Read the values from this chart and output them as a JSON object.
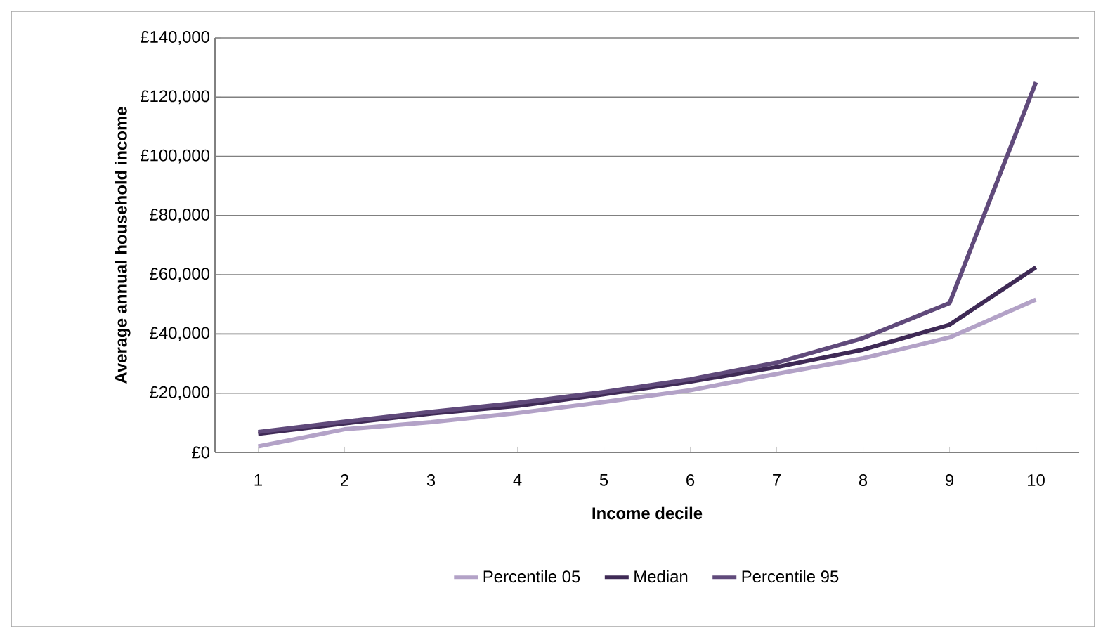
{
  "chart_data": {
    "type": "line",
    "xlabel": "Income decile",
    "ylabel": "Average annual household income",
    "categories": [
      "1",
      "2",
      "3",
      "4",
      "5",
      "6",
      "7",
      "8",
      "9",
      "10"
    ],
    "series": [
      {
        "name": "Percentile 05",
        "color": "#b3a2c7",
        "values": [
          2000,
          7800,
          10200,
          13300,
          17000,
          21000,
          26500,
          31800,
          38800,
          51600
        ]
      },
      {
        "name": "Median",
        "color": "#3f2a56",
        "values": [
          6300,
          9800,
          13100,
          15700,
          19600,
          23900,
          28800,
          34700,
          43100,
          62500
        ]
      },
      {
        "name": "Percentile 95",
        "color": "#604a7b",
        "values": [
          6900,
          10400,
          13700,
          16700,
          20400,
          24700,
          30300,
          38600,
          50400,
          125000
        ]
      }
    ],
    "ylim": [
      0,
      140000
    ],
    "yticks": [
      {
        "value": 0,
        "label": "£0"
      },
      {
        "value": 20000,
        "label": "£20,000"
      },
      {
        "value": 40000,
        "label": "£40,000"
      },
      {
        "value": 60000,
        "label": "£60,000"
      },
      {
        "value": 80000,
        "label": "£80,000"
      },
      {
        "value": 100000,
        "label": "£100,000"
      },
      {
        "value": 120000,
        "label": "£120,000"
      },
      {
        "value": 140000,
        "label": "£140,000"
      }
    ],
    "grid": "y",
    "legend": "bottom",
    "marker": "none",
    "line_style": "solid"
  }
}
